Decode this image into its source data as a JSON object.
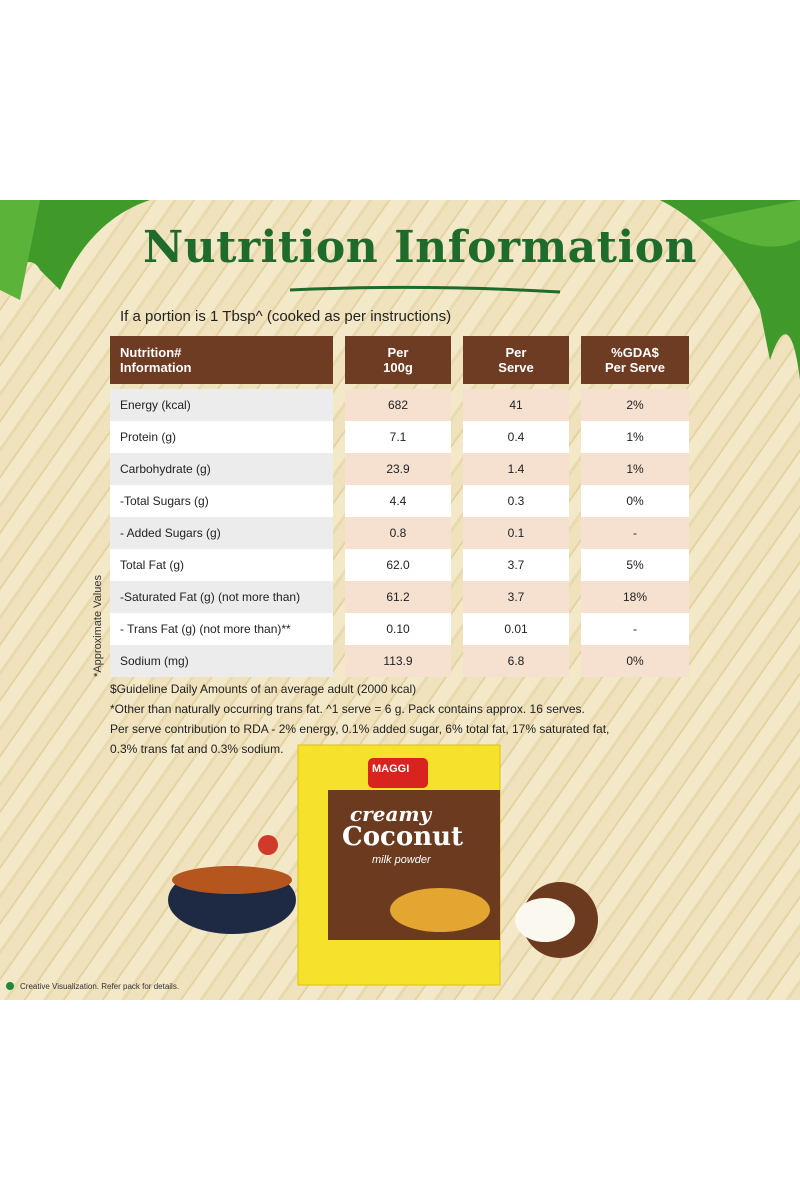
{
  "title": "Nutrition Information",
  "subtitle": "If a portion is 1 Tbsp^ (cooked as per instructions)",
  "table": {
    "header": [
      "Nutrition#\nInformation",
      "Per\n100g",
      "Per\nServe",
      "%GDA$\nPer Serve"
    ],
    "rows": [
      [
        "Energy (kcal)",
        "682",
        "41",
        "2%"
      ],
      [
        "Protein (g)",
        "7.1",
        "0.4",
        "1%"
      ],
      [
        "Carbohydrate (g)",
        "23.9",
        "1.4",
        "1%"
      ],
      [
        "-Total Sugars (g)",
        "4.4",
        "0.3",
        "0%"
      ],
      [
        "- Added Sugars (g)",
        "0.8",
        "0.1",
        "-"
      ],
      [
        "Total Fat (g)",
        "62.0",
        "3.7",
        "5%"
      ],
      [
        "-Saturated Fat (g) (not more than)",
        "61.2",
        "3.7",
        "18%"
      ],
      [
        "- Trans Fat (g) (not more than)**",
        "0.10",
        "0.01",
        "-"
      ],
      [
        "Sodium (mg)",
        "113.9",
        "6.8",
        "0%"
      ]
    ]
  },
  "side_note": "*Approximate Values",
  "footnotes": [
    "$Guideline Daily Amounts of an average adult (2000 kcal)",
    "*Other than naturally occurring trans fat. ^1 serve = 6 g. Pack contains approx. 16 serves.",
    "Per serve contribution to RDA - 2% energy, 0.1% added sugar, 6% total fat, 17% saturated fat,",
    "0.3% trans fat and 0.3% sodium."
  ],
  "product": {
    "brand": "MAGGI",
    "line1": "creamy",
    "line2": "Coconut",
    "line3": "milk powder"
  },
  "disclaimer": "Creative Visualization. Refer pack for details."
}
